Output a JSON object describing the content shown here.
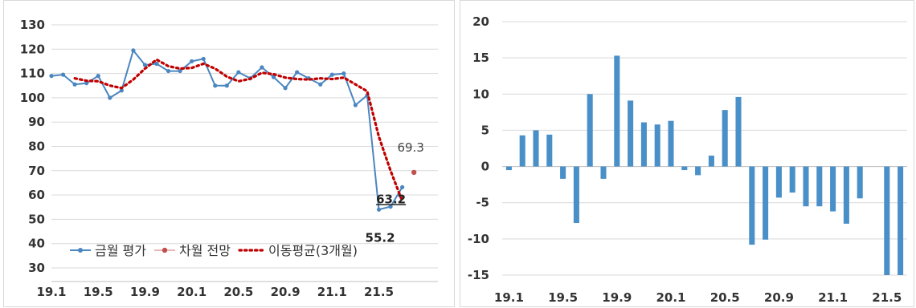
{
  "chart_data": [
    {
      "type": "line",
      "title": "",
      "xlabel": "",
      "ylabel": "",
      "ylim": [
        30,
        130
      ],
      "yticks": [
        30,
        40,
        50,
        60,
        70,
        80,
        90,
        100,
        110,
        120,
        130
      ],
      "x_tick_labels": [
        "19.1",
        "19.5",
        "19.9",
        "20.1",
        "20.5",
        "20.9",
        "21.1",
        "21.5"
      ],
      "x": [
        "19.1",
        "19.2",
        "19.3",
        "19.4",
        "19.5",
        "19.6",
        "19.7",
        "19.8",
        "19.9",
        "19.10",
        "19.11",
        "19.12",
        "20.1",
        "20.2",
        "20.3",
        "20.4",
        "20.5",
        "20.6",
        "20.7",
        "20.8",
        "20.9",
        "20.10",
        "20.11",
        "20.12",
        "21.1",
        "21.2",
        "21.3",
        "21.4",
        "21.5",
        "21.6",
        "21.7",
        "21.8"
      ],
      "grid": true,
      "legend_position": "bottom-left",
      "series": [
        {
          "name": "금월 평가",
          "color": "#4a86c0",
          "values": [
            109,
            109.5,
            105.5,
            106,
            109,
            100,
            103,
            119.5,
            113.5,
            114,
            111,
            111,
            115,
            116,
            105,
            105,
            110.5,
            108,
            112.5,
            108.5,
            104,
            110.5,
            108,
            105.5,
            109.5,
            110,
            97,
            101,
            54,
            55.2,
            63.2,
            null
          ]
        },
        {
          "name": "차월 전망",
          "color": "#c0504d",
          "values": [
            null,
            null,
            null,
            null,
            null,
            null,
            null,
            null,
            null,
            null,
            null,
            null,
            null,
            null,
            null,
            null,
            null,
            null,
            null,
            null,
            null,
            null,
            null,
            null,
            null,
            null,
            null,
            null,
            null,
            null,
            null,
            69.3
          ]
        },
        {
          "name": "이동평균(3개월)",
          "color": "#c00000",
          "values": [
            null,
            null,
            108,
            107,
            106.8,
            105,
            104,
            107.5,
            112,
            115.7,
            113,
            112,
            112.3,
            114,
            112,
            108.7,
            106.8,
            107.8,
            110.3,
            109.7,
            108.3,
            107.7,
            107.5,
            108,
            107.7,
            108.3,
            105.5,
            102.7,
            84,
            70,
            57.5,
            null
          ]
        }
      ],
      "data_labels": [
        {
          "text": "69.3",
          "series": "차월 전망",
          "index": 31
        },
        {
          "text": "63.2",
          "series": "금월 평가",
          "index": 30
        },
        {
          "text": "55.2",
          "series": "금월 평가",
          "index": 29
        }
      ]
    },
    {
      "type": "bar",
      "title": "",
      "xlabel": "",
      "ylabel": "",
      "ylim": [
        -15,
        20
      ],
      "yticks": [
        -15,
        -10,
        -5,
        0,
        5,
        10,
        15,
        20
      ],
      "x_tick_labels": [
        "19.1",
        "19.5",
        "19.9",
        "20.1",
        "20.5",
        "20.9",
        "21.1",
        "21.5"
      ],
      "categories": [
        "19.1",
        "19.2",
        "19.3",
        "19.4",
        "19.5",
        "19.6",
        "19.7",
        "19.8",
        "19.9",
        "19.10",
        "19.11",
        "19.12",
        "20.1",
        "20.2",
        "20.3",
        "20.4",
        "20.5",
        "20.6",
        "20.7",
        "20.8",
        "20.9",
        "20.10",
        "20.11",
        "20.12",
        "21.1",
        "21.2",
        "21.3",
        "21.4",
        "21.5",
        "21.6"
      ],
      "values": [
        -0.5,
        4.3,
        5.0,
        4.4,
        -1.7,
        -7.8,
        10.0,
        -1.7,
        15.3,
        9.1,
        6.1,
        5.8,
        6.3,
        -0.5,
        -1.2,
        1.5,
        7.8,
        9.6,
        -10.8,
        -10.1,
        -4.3,
        -3.6,
        -5.5,
        -5.5,
        -6.2,
        -7.9,
        -4.4,
        null,
        -15.0,
        -15.0
      ],
      "color": "#4a90c8",
      "grid": true
    }
  ]
}
